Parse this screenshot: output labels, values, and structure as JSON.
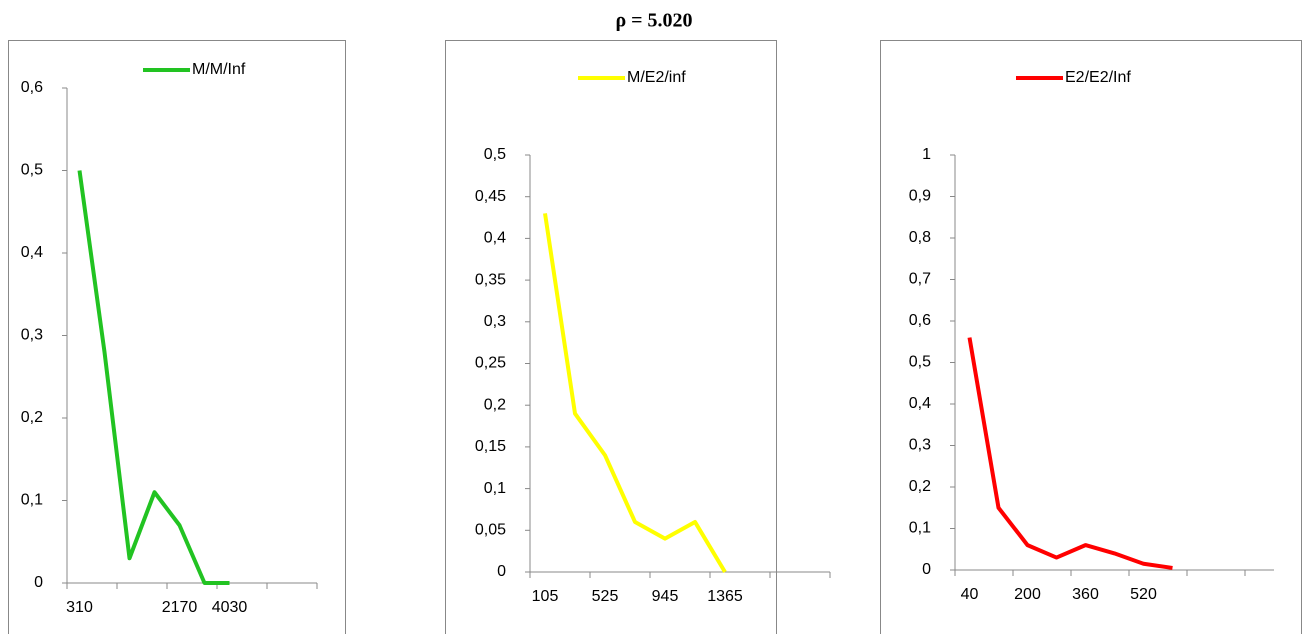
{
  "title": "ρ = 5.020",
  "chart_data": [
    {
      "type": "line",
      "categories": [
        "310",
        null,
        null,
        null,
        "2170",
        null,
        "4030",
        null,
        null,
        null
      ],
      "series": [
        {
          "name": "M/M/Inf",
          "color": "#22c322",
          "values": [
            0.5,
            0.28,
            0.03,
            0.11,
            0.07,
            0,
            0,
            null,
            null,
            null
          ]
        }
      ],
      "ylim": [
        0,
        0.6
      ],
      "yticks": [
        0,
        {
          "value": 0.1,
          "label": "0,1"
        },
        {
          "value": 0.2,
          "label": "0,2"
        },
        {
          "value": 0.3,
          "label": "0,3"
        },
        {
          "value": 0.4,
          "label": "0,4"
        },
        {
          "value": 0.5,
          "label": "0,5"
        },
        {
          "value": 0.6,
          "label": "0,6"
        }
      ],
      "grid": false,
      "legend": "top"
    },
    {
      "type": "line",
      "categories": [
        "105",
        null,
        "525",
        null,
        "945",
        null,
        "1365",
        null,
        null,
        null
      ],
      "series": [
        {
          "name": "M/E2/inf",
          "color": "#ffff00",
          "values": [
            0.43,
            0.19,
            0.14,
            0.06,
            0.04,
            0.06,
            0,
            null,
            null,
            null
          ]
        }
      ],
      "ylim": [
        0,
        0.5
      ],
      "yticks": [
        0,
        {
          "value": 0.05,
          "label": "0,05"
        },
        {
          "value": 0.1,
          "label": "0,1"
        },
        {
          "value": 0.15,
          "label": "0,15"
        },
        {
          "value": 0.2,
          "label": "0,2"
        },
        {
          "value": 0.25,
          "label": "0,25"
        },
        {
          "value": 0.3,
          "label": "0,3"
        },
        {
          "value": 0.35,
          "label": "0,35"
        },
        {
          "value": 0.4,
          "label": "0,4"
        },
        {
          "value": 0.45,
          "label": "0,45"
        },
        {
          "value": 0.5,
          "label": "0,5"
        }
      ],
      "grid": false,
      "legend": "top"
    },
    {
      "type": "line",
      "categories": [
        "40",
        null,
        "200",
        null,
        "360",
        null,
        "520",
        null,
        null,
        null,
        null
      ],
      "series": [
        {
          "name": "E2/E2/Inf",
          "color": "#ff0000",
          "values": [
            0.56,
            0.15,
            0.06,
            0.03,
            0.06,
            0.04,
            0.015,
            0.005,
            null,
            null,
            null
          ]
        }
      ],
      "ylim": [
        0,
        1
      ],
      "yticks": [
        0,
        {
          "value": 0.1,
          "label": "0,1"
        },
        {
          "value": 0.2,
          "label": "0,2"
        },
        {
          "value": 0.3,
          "label": "0,3"
        },
        {
          "value": 0.4,
          "label": "0,4"
        },
        {
          "value": 0.5,
          "label": "0,5"
        },
        {
          "value": 0.6,
          "label": "0,6"
        },
        {
          "value": 0.7,
          "label": "0,7"
        },
        {
          "value": 0.8,
          "label": "0,8"
        },
        {
          "value": 0.9,
          "label": "0,9"
        },
        1
      ],
      "grid": false,
      "legend": "top"
    }
  ]
}
